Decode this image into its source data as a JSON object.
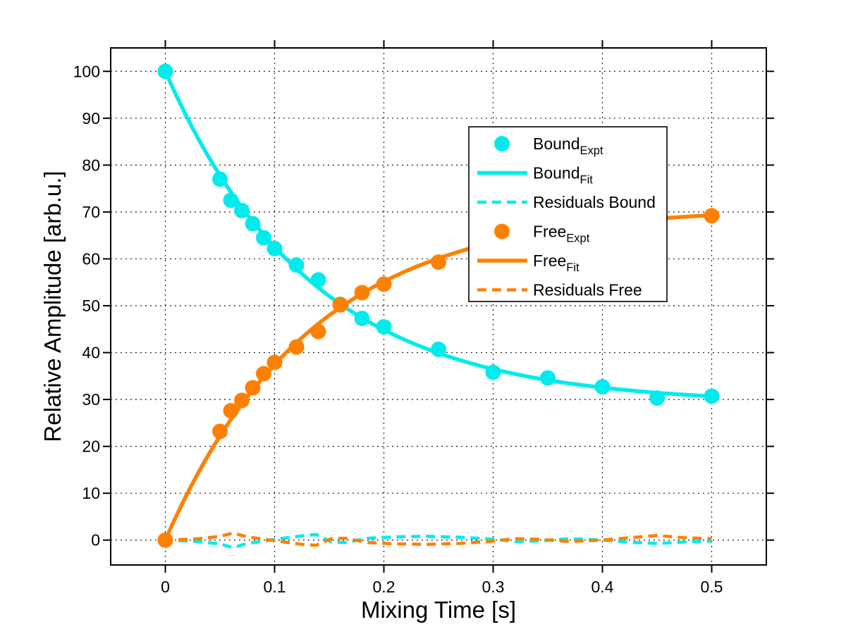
{
  "figure": {
    "background": "#ffffff",
    "axis_color": "#000000"
  },
  "chart_data": {
    "type": "line",
    "title": "",
    "xlabel": "Mixing Time [s]",
    "ylabel": "Relative Amplitude [arb.u.]",
    "xlim": [
      -0.05,
      0.55
    ],
    "ylim": [
      -5.3,
      105.0
    ],
    "xticks": [
      0,
      0.1,
      0.2,
      0.3,
      0.4,
      0.5
    ],
    "xtick_labels": [
      "0",
      "0.1",
      "0.2",
      "0.3",
      "0.4",
      "0.5"
    ],
    "yticks": [
      0,
      10,
      20,
      30,
      40,
      50,
      60,
      70,
      80,
      90,
      100
    ],
    "grid": "dotted",
    "legend_position": "upper-right-center",
    "colors": {
      "bound": "#00ECEC",
      "free": "#FF8000"
    },
    "fit_model_formula": "y(t) = offset + amplitude * exp(-rate * t)",
    "series": [
      {
        "name": "Bound_Expt",
        "type": "scatter",
        "color_key": "bound",
        "x": [
          0,
          0.05,
          0.06,
          0.07,
          0.08,
          0.09,
          0.1,
          0.12,
          0.14,
          0.16,
          0.18,
          0.2,
          0.25,
          0.3,
          0.35,
          0.4,
          0.45,
          0.5
        ],
        "y": [
          100,
          77.0,
          72.5,
          70.3,
          67.5,
          64.5,
          62.2,
          58.7,
          55.5,
          50.3,
          47.3,
          45.5,
          40.7,
          35.8,
          34.6,
          32.7,
          30.3,
          30.7
        ]
      },
      {
        "name": "Bound_Fit",
        "type": "fit-line",
        "color_key": "bound",
        "model": {
          "offset": 29,
          "amplitude": 71,
          "rate": 7.5
        },
        "domain": [
          0,
          0.5
        ]
      },
      {
        "name": "Residuals Bound",
        "type": "residual",
        "color_key": "bound",
        "x": [
          0.012,
          0.03,
          0.05,
          0.062,
          0.075,
          0.09,
          0.105,
          0.125,
          0.138,
          0.152,
          0.165,
          0.185,
          0.21,
          0.24,
          0.27,
          0.3,
          0.32,
          0.34,
          0.37,
          0.4,
          0.43,
          0.45,
          0.475,
          0.5
        ],
        "y": [
          -0.1,
          -0.3,
          -0.8,
          -1.6,
          -0.7,
          -0.2,
          0.3,
          0.9,
          1.2,
          -0.4,
          -0.5,
          0.4,
          0.7,
          0.8,
          0.6,
          0.2,
          -0.3,
          -0.2,
          0.3,
          0.0,
          -0.5,
          -0.7,
          -0.4,
          -0.2
        ]
      },
      {
        "name": "Free_Expt",
        "type": "scatter",
        "color_key": "free",
        "x": [
          0,
          0.05,
          0.06,
          0.07,
          0.08,
          0.09,
          0.1,
          0.12,
          0.14,
          0.16,
          0.18,
          0.2,
          0.25,
          0.3,
          0.35,
          0.4,
          0.45,
          0.5
        ],
        "y": [
          0,
          23.2,
          27.6,
          29.8,
          32.5,
          35.5,
          37.9,
          41.2,
          44.5,
          50.2,
          52.8,
          54.6,
          59.3,
          63.5,
          65.9,
          67.5,
          68.6,
          69.2
        ]
      },
      {
        "name": "Free_Fit",
        "type": "fit-line",
        "color_key": "free",
        "model": {
          "offset": 71,
          "amplitude": -71,
          "rate": 7.5
        },
        "domain": [
          0,
          0.5
        ]
      },
      {
        "name": "Residuals Free",
        "type": "residual",
        "color_key": "free",
        "x": [
          0.012,
          0.03,
          0.05,
          0.062,
          0.075,
          0.09,
          0.105,
          0.125,
          0.138,
          0.152,
          0.165,
          0.185,
          0.21,
          0.24,
          0.27,
          0.3,
          0.32,
          0.34,
          0.37,
          0.4,
          0.43,
          0.45,
          0.475,
          0.5
        ],
        "y": [
          0.1,
          0.3,
          0.8,
          1.5,
          0.7,
          0.2,
          -0.3,
          -0.9,
          -1.1,
          0.3,
          0.4,
          -0.5,
          -0.8,
          -0.9,
          -0.7,
          -0.2,
          0.3,
          0.2,
          -0.3,
          0.0,
          0.6,
          1.0,
          0.5,
          0.3
        ]
      }
    ],
    "legend": {
      "entries": [
        {
          "label": "Bound",
          "sub": "Expt",
          "marker": "dot",
          "color_key": "bound"
        },
        {
          "label": "Bound",
          "sub": "Fit",
          "marker": "line",
          "color_key": "bound"
        },
        {
          "label": "Residuals Bound",
          "sub": "",
          "marker": "dash",
          "color_key": "bound"
        },
        {
          "label": "Free",
          "sub": "Expt",
          "marker": "dot",
          "color_key": "free"
        },
        {
          "label": "Free",
          "sub": "Fit",
          "marker": "line",
          "color_key": "free"
        },
        {
          "label": "Residuals Free",
          "sub": "",
          "marker": "dash",
          "color_key": "free"
        }
      ]
    }
  }
}
